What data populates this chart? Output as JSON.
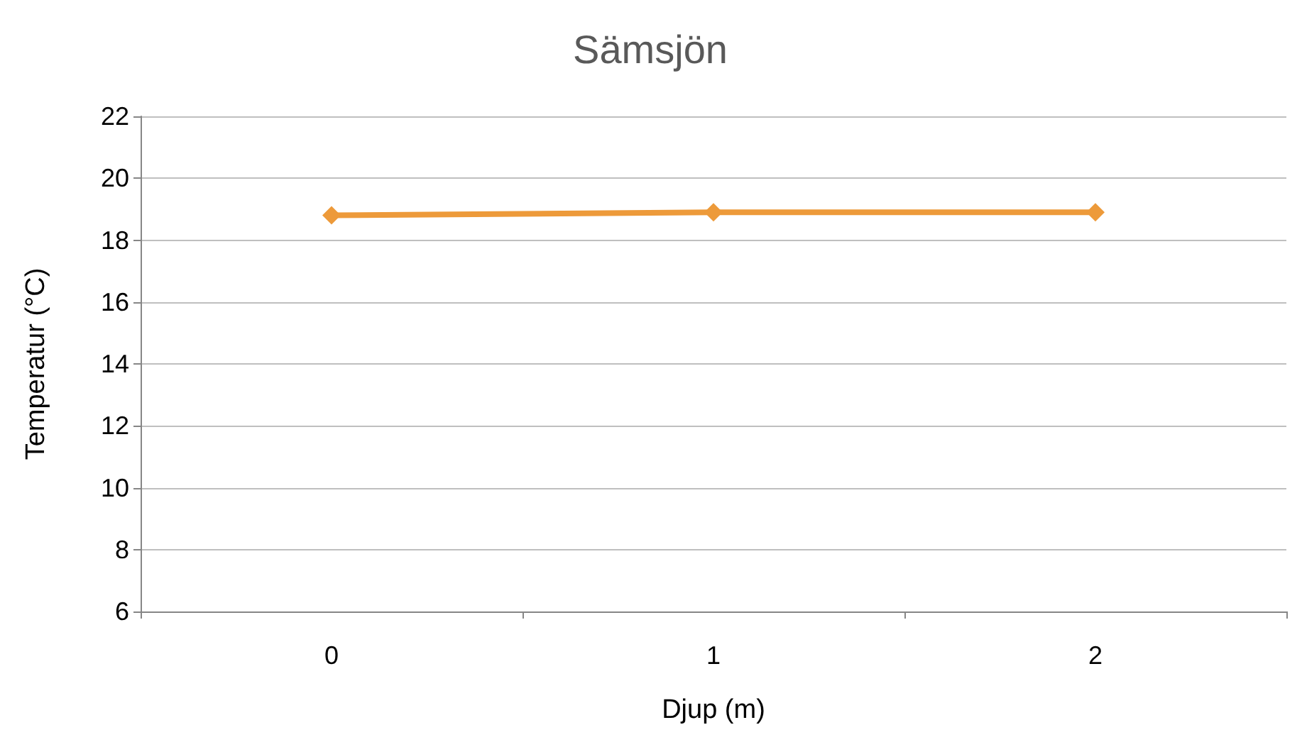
{
  "chart_data": {
    "type": "line",
    "title": "Sämsjön",
    "xlabel": "Djup (m)",
    "ylabel": "Temperatur (°C)",
    "categories": [
      "0",
      "1",
      "2"
    ],
    "series": [
      {
        "color": "#ed9a3a",
        "values": [
          18.8,
          18.9,
          18.9
        ]
      }
    ],
    "ylim": [
      6,
      22
    ],
    "yticks": [
      6,
      8,
      10,
      12,
      14,
      16,
      18,
      20,
      22
    ],
    "grid": "y",
    "marker": "diamond",
    "line_style": "solid"
  }
}
